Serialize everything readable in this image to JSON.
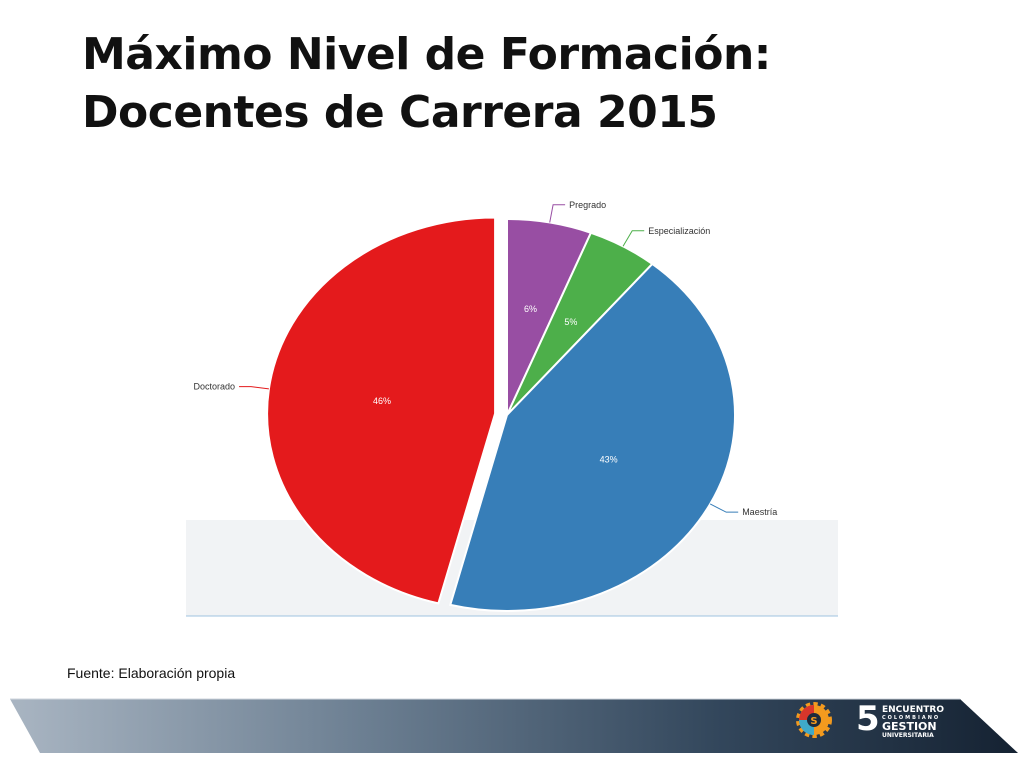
{
  "slide": {
    "title_line1": "Máximo Nivel de Formación:",
    "title_line2": "Docentes de Carrera 2015",
    "source_note": "Fuente: Elaboración propia"
  },
  "chart_data": {
    "type": "pie",
    "title": "",
    "slices": [
      {
        "label": "Pregrado",
        "value": 6,
        "display": "6%",
        "color": "#984ea3"
      },
      {
        "label": "Especialización",
        "value": 5,
        "display": "5%",
        "color": "#4daf4a"
      },
      {
        "label": "Maestría",
        "value": 43,
        "display": "43%",
        "color": "#377eb8"
      },
      {
        "label": "Doctorado",
        "value": 46,
        "display": "46%",
        "color": "#e41a1c"
      }
    ],
    "exploded_slice": "Doctorado"
  },
  "footer": {
    "logo": {
      "numeral": "5",
      "line1": "ENCUENTRO",
      "line2": "COLOMBIANO",
      "line3": "GESTION",
      "line4": "UNIVERSITARIA",
      "icon": "gear-logo-icon"
    },
    "colors": {
      "band_light": "#9aa8b6",
      "band_dark": "#1c2b3c",
      "logo_orange": "#f39a1e",
      "logo_red": "#d9362b"
    }
  }
}
